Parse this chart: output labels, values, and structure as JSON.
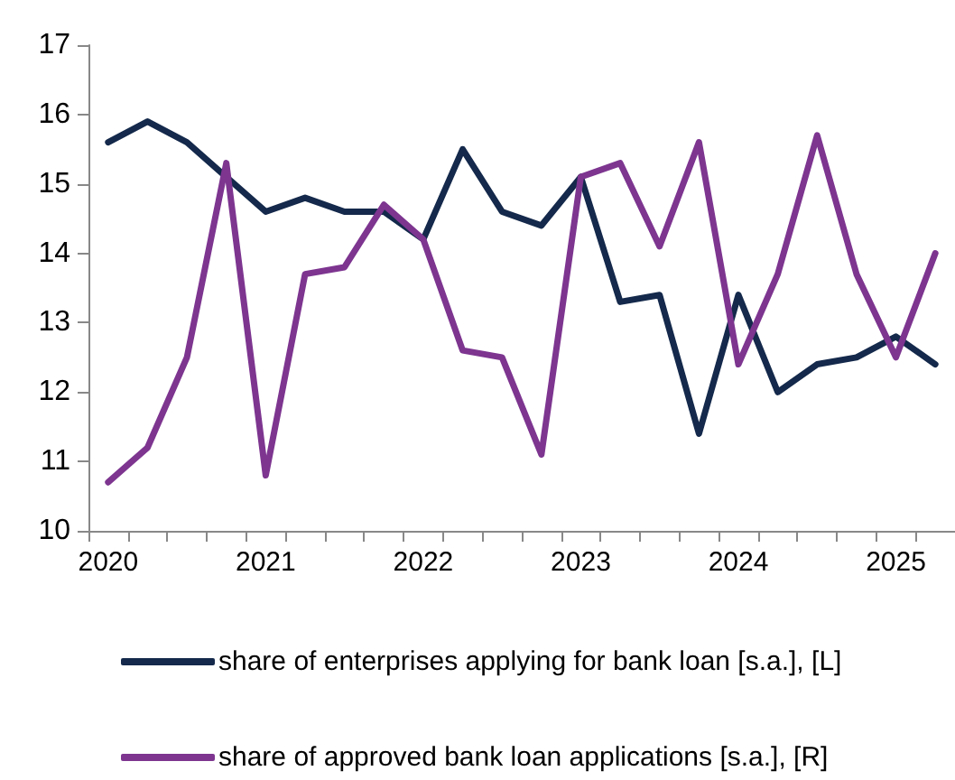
{
  "chart_data": {
    "type": "line",
    "categories": [
      "2020",
      null,
      null,
      null,
      "2021",
      null,
      null,
      null,
      "2022",
      null,
      null,
      null,
      "2023",
      null,
      null,
      null,
      "2024",
      null,
      null,
      null,
      "2025",
      null
    ],
    "series": [
      {
        "name": "share of enterprises applying for bank loan [s.a.], [L]",
        "color": "#14294b",
        "values": [
          15.6,
          15.9,
          15.6,
          15.1,
          14.6,
          14.8,
          14.6,
          14.6,
          14.2,
          15.5,
          14.6,
          14.4,
          15.1,
          13.3,
          13.4,
          11.4,
          13.4,
          12.0,
          12.4,
          12.5,
          12.8,
          12.4
        ]
      },
      {
        "name": "share of approved bank loan applications [s.a.], [R]",
        "color": "#7d3590",
        "values": [
          10.7,
          11.2,
          12.5,
          15.3,
          10.8,
          13.7,
          13.8,
          14.7,
          14.2,
          12.6,
          12.5,
          11.1,
          15.1,
          15.3,
          14.1,
          15.6,
          12.4,
          13.7,
          15.7,
          13.7,
          12.5,
          14.0
        ]
      }
    ],
    "ylim": [
      10,
      17
    ],
    "yticks": [
      10,
      11,
      12,
      13,
      14,
      15,
      16,
      17
    ],
    "grid": false,
    "legend": "bottom",
    "marker": "none",
    "line_style": "solid"
  }
}
